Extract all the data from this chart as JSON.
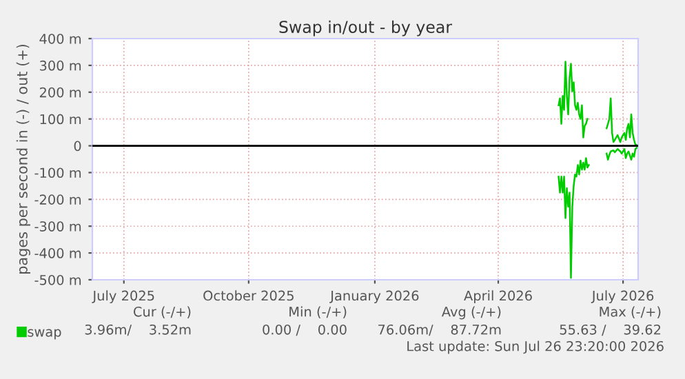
{
  "chart_data": {
    "type": "line",
    "title": "Swap in/out - by year",
    "ylabel": "pages per second in (-) / out (+)",
    "xlim": [
      "2025-06-23",
      "2026-07-26"
    ],
    "xticks": [
      {
        "value": "2025-07-16",
        "label": "July 2025"
      },
      {
        "value": "2025-10-15",
        "label": "October 2025"
      },
      {
        "value": "2026-01-15",
        "label": "January 2026"
      },
      {
        "value": "2026-04-15",
        "label": "April 2026"
      },
      {
        "value": "2026-07-15",
        "label": "July 2026"
      }
    ],
    "ylim": [
      -500,
      400
    ],
    "yticks": [
      {
        "value": -500,
        "label": "-500 m"
      },
      {
        "value": -400,
        "label": "-400 m"
      },
      {
        "value": -300,
        "label": "-300 m"
      },
      {
        "value": -200,
        "label": "-200 m"
      },
      {
        "value": -100,
        "label": "-100 m"
      },
      0,
      {
        "value": 100,
        "label": "100 m"
      },
      {
        "value": 200,
        "label": "200 m"
      },
      {
        "value": 300,
        "label": "300 m"
      },
      {
        "value": 400,
        "label": "400 m"
      }
    ],
    "grid": true,
    "legend": "bottom",
    "ref_lines": [
      {
        "axis": "y",
        "value": 0,
        "color": "#000000"
      }
    ],
    "series": [
      {
        "name": "swap",
        "color": "#00cc00",
        "x": [
          "2026-05-29",
          "2026-05-30",
          "2026-05-31",
          "2026-06-01",
          "2026-06-02",
          "2026-06-03",
          "2026-06-04",
          "2026-06-05",
          "2026-06-06",
          "2026-06-07",
          "2026-06-08",
          "2026-06-09",
          "2026-06-10",
          "2026-06-11",
          "2026-06-12",
          "2026-06-13",
          "2026-06-14",
          "2026-06-15",
          "2026-06-16",
          "2026-06-17",
          "2026-06-18",
          "2026-06-19",
          "2026-06-27",
          "2026-07-03",
          "2026-07-04",
          "2026-07-05",
          "2026-07-06",
          "2026-07-07",
          "2026-07-08",
          "2026-07-09",
          "2026-07-11",
          "2026-07-13",
          "2026-07-14",
          "2026-07-16",
          "2026-07-17",
          "2026-07-18",
          "2026-07-19",
          "2026-07-20",
          "2026-07-21",
          "2026-07-22",
          "2026-07-23",
          "2026-07-24",
          "2026-07-26"
        ],
        "values": [
          151,
          177,
          82,
          186,
          134,
          314,
          186,
          117,
          254,
          306,
          203,
          237,
          151,
          134,
          160,
          117,
          100,
          151,
          31,
          74,
          82,
          100,
          null,
          65,
          82,
          100,
          177,
          48,
          14,
          22,
          40,
          14,
          31,
          48,
          22,
          65,
          82,
          31,
          117,
          48,
          22,
          5,
          0
        ]
      },
      {
        "color": "#00cc00",
        "x": [
          "2026-05-29",
          "2026-05-30",
          "2026-05-31",
          "2026-06-01",
          "2026-06-02",
          "2026-06-03",
          "2026-06-04",
          "2026-06-05",
          "2026-06-06",
          "2026-06-07",
          "2026-06-08",
          "2026-06-09",
          "2026-06-10",
          "2026-06-11",
          "2026-06-12",
          "2026-06-13",
          "2026-06-14",
          "2026-06-15",
          "2026-06-16",
          "2026-06-17",
          "2026-06-18",
          "2026-06-19",
          "2026-06-20",
          "2026-06-27",
          "2026-07-03",
          "2026-07-04",
          "2026-07-05",
          "2026-07-06",
          "2026-07-08",
          "2026-07-09",
          "2026-07-11",
          "2026-07-13",
          "2026-07-14",
          "2026-07-16",
          "2026-07-17",
          "2026-07-18",
          "2026-07-19",
          "2026-07-21",
          "2026-07-22",
          "2026-07-23",
          "2026-07-24",
          "2026-07-26"
        ],
        "values": [
          -115,
          -175,
          -115,
          -175,
          -115,
          -270,
          -158,
          -227,
          -175,
          -493,
          -227,
          -149,
          -107,
          -115,
          -72,
          -107,
          -55,
          -89,
          -63,
          -89,
          -46,
          -81,
          -72,
          null,
          -29,
          -52,
          -34,
          -21,
          -17,
          -24,
          -12,
          -21,
          -29,
          -12,
          -46,
          -29,
          -21,
          -52,
          -29,
          -41,
          -12,
          -3
        ]
      }
    ],
    "annotations": [
      "Cur (-/+)",
      "Min (-/+)",
      "Avg (-/+)",
      "Max (-/+)",
      "3.96m/    3.52m",
      "0.00 /    0.00",
      "76.06m/    87.72m",
      "55.63 /    39.62",
      "Last update: Sun Jul 26 23:20:00 2026"
    ]
  }
}
